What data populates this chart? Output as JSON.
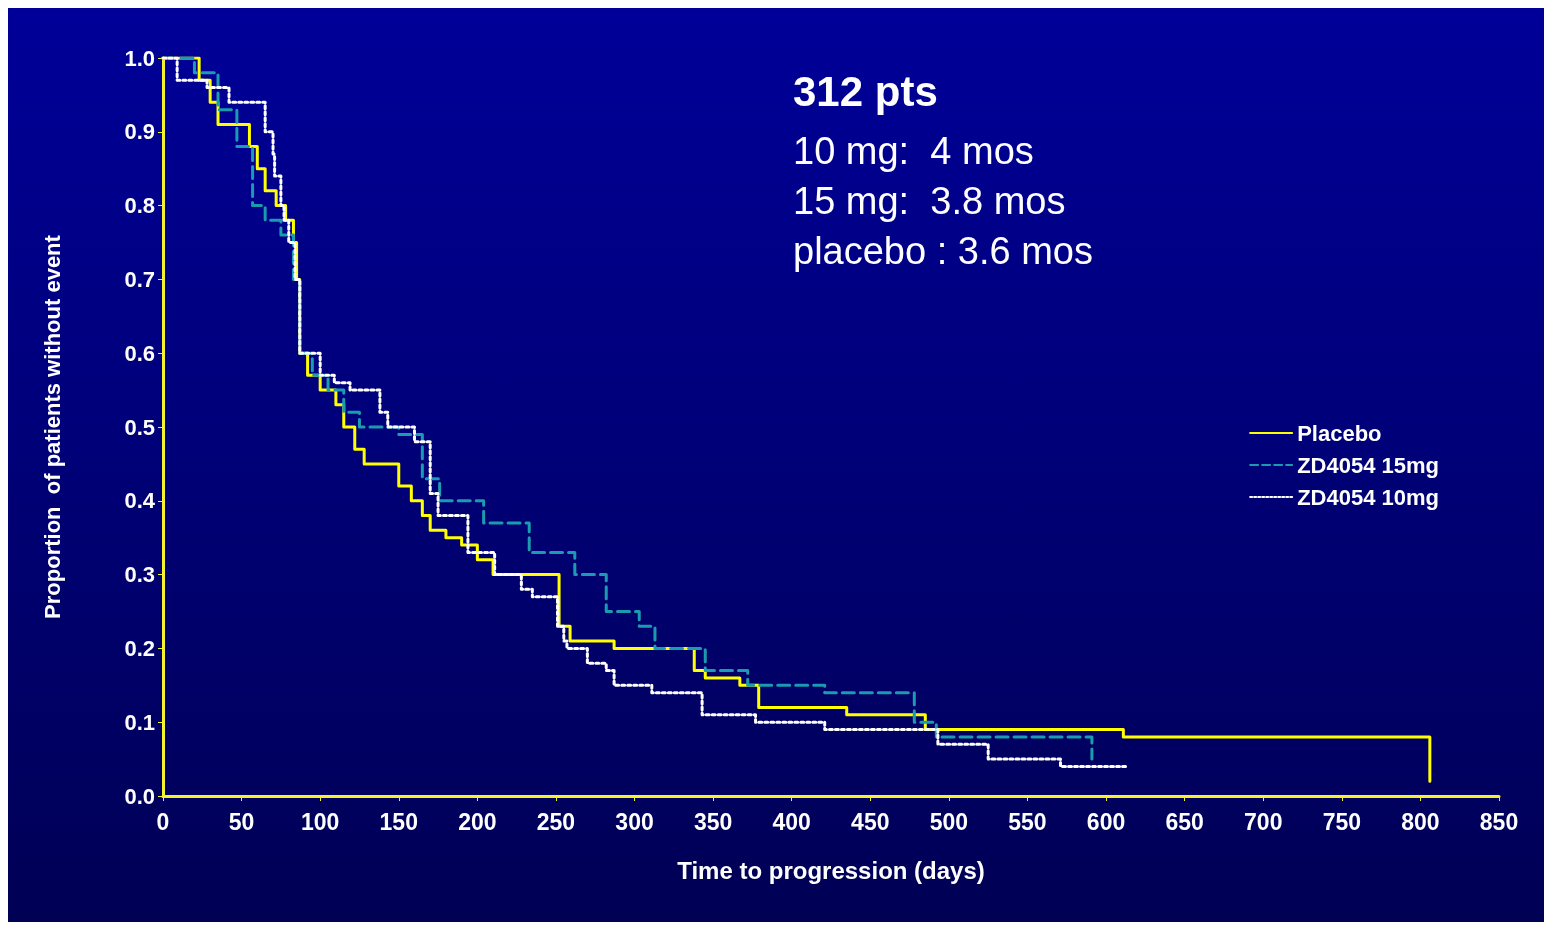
{
  "chart_data": {
    "type": "step",
    "xlabel": "Time to progression (days)",
    "ylabel": "Proportion  of patients without event",
    "annotations": [
      "312 pts",
      "10 mg:  4 mos",
      "15 mg:  3.8 mos",
      "placebo : 3.6 mos"
    ],
    "xlim": [
      0,
      850
    ],
    "xticks": [
      0,
      50,
      100,
      150,
      200,
      250,
      300,
      350,
      400,
      450,
      500,
      550,
      600,
      650,
      700,
      750,
      800,
      850
    ],
    "ylim": [
      0,
      1
    ],
    "yticks": [
      {
        "value": 0,
        "label": "0.0"
      },
      {
        "value": 0.1,
        "label": "0.1"
      },
      {
        "value": 0.2,
        "label": "0.2"
      },
      {
        "value": 0.3,
        "label": "0.3"
      },
      {
        "value": 0.4,
        "label": "0.4"
      },
      {
        "value": 0.5,
        "label": "0.5"
      },
      {
        "value": 0.6,
        "label": "0.6"
      },
      {
        "value": 0.7,
        "label": "0.7"
      },
      {
        "value": 0.8,
        "label": "0.8"
      },
      {
        "value": 0.9,
        "label": "0.9"
      },
      {
        "value": 1,
        "label": "1.0"
      }
    ],
    "grid": false,
    "legend": "right",
    "marker": "none",
    "series": [
      {
        "name": "Placebo",
        "color": "#ffff00",
        "line_style": "solid",
        "x": [
          0,
          23,
          30,
          35,
          55,
          60,
          65,
          72,
          78,
          83,
          85,
          87,
          92,
          100,
          110,
          115,
          122,
          128,
          150,
          158,
          165,
          170,
          180,
          190,
          200,
          210,
          252,
          259,
          287,
          310,
          338,
          345,
          367,
          379,
          435,
          485,
          611,
          806
        ],
        "values": [
          1.0,
          0.97,
          0.94,
          0.91,
          0.88,
          0.85,
          0.82,
          0.8,
          0.78,
          0.75,
          0.7,
          0.6,
          0.57,
          0.55,
          0.53,
          0.5,
          0.47,
          0.45,
          0.42,
          0.4,
          0.38,
          0.36,
          0.35,
          0.34,
          0.32,
          0.3,
          0.23,
          0.21,
          0.2,
          0.2,
          0.17,
          0.16,
          0.15,
          0.12,
          0.11,
          0.09,
          0.08,
          0.02
        ]
      },
      {
        "name": "ZD4054 15mg",
        "color": "#1a9bb0",
        "line_style": "dashed",
        "x": [
          0,
          20,
          35,
          47,
          57,
          65,
          75,
          83,
          87,
          95,
          105,
          115,
          125,
          150,
          165,
          176,
          204,
          233,
          262,
          282,
          303,
          313,
          345,
          372,
          421,
          478,
          492,
          591
        ],
        "values": [
          1.0,
          0.98,
          0.93,
          0.88,
          0.8,
          0.78,
          0.76,
          0.7,
          0.6,
          0.57,
          0.55,
          0.52,
          0.5,
          0.49,
          0.43,
          0.4,
          0.37,
          0.33,
          0.3,
          0.25,
          0.23,
          0.2,
          0.17,
          0.15,
          0.14,
          0.1,
          0.08,
          0.05
        ]
      },
      {
        "name": "ZD4054 10mg",
        "color": "#ffffff",
        "line_style": "dotted",
        "x": [
          0,
          9,
          28,
          42,
          65,
          70,
          71,
          75,
          77,
          80,
          84,
          87,
          100,
          109,
          119,
          138,
          143,
          160,
          170,
          175,
          194,
          211,
          228,
          235,
          251,
          255,
          257,
          270,
          282,
          287,
          311,
          343,
          377,
          421,
          493,
          515,
          525,
          571,
          614
        ],
        "values": [
          1.0,
          0.97,
          0.96,
          0.94,
          0.9,
          0.87,
          0.84,
          0.8,
          0.78,
          0.75,
          0.7,
          0.6,
          0.57,
          0.56,
          0.55,
          0.52,
          0.5,
          0.48,
          0.41,
          0.38,
          0.33,
          0.3,
          0.28,
          0.27,
          0.23,
          0.21,
          0.2,
          0.18,
          0.17,
          0.15,
          0.14,
          0.11,
          0.1,
          0.09,
          0.07,
          0.07,
          0.05,
          0.04,
          0.04
        ]
      }
    ]
  }
}
